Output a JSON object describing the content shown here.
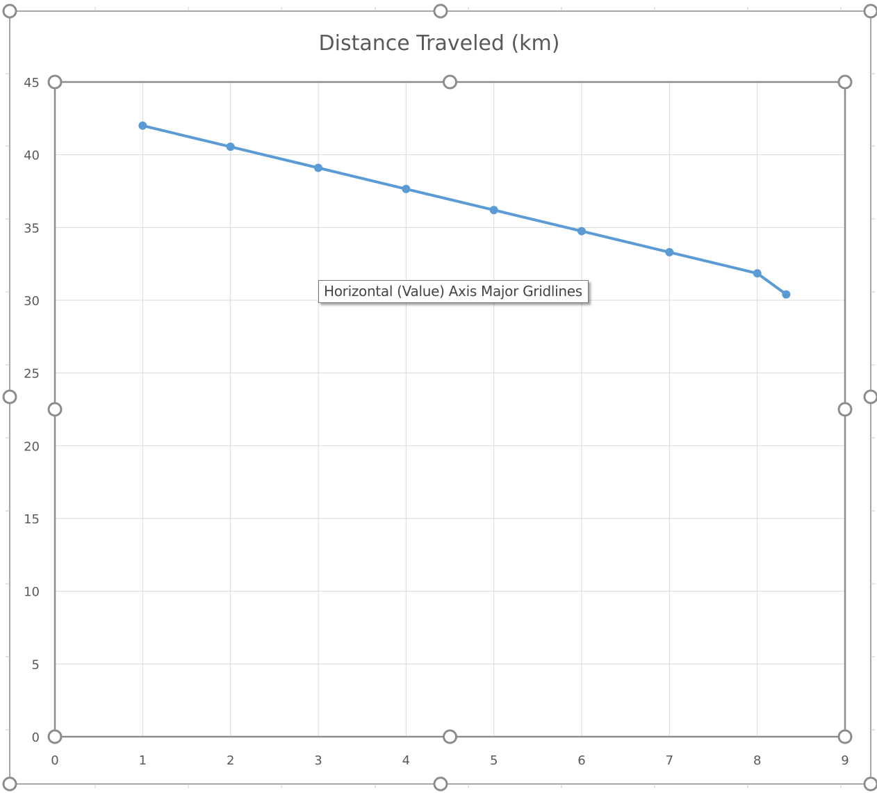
{
  "chart_data": {
    "type": "scatter",
    "title": "Distance Traveled  (km)",
    "xlabel": "",
    "ylabel": "",
    "xlim": [
      0,
      9
    ],
    "ylim": [
      0,
      45
    ],
    "x_ticks": [
      "0",
      "1",
      "2",
      "3",
      "4",
      "5",
      "6",
      "7",
      "8",
      "9"
    ],
    "y_ticks": [
      "0",
      "5",
      "10",
      "15",
      "20",
      "25",
      "30",
      "35",
      "40",
      "45"
    ],
    "grid": true,
    "legend": "none",
    "series": [
      {
        "color": "#5b9bd5",
        "marker": "circle",
        "line": "straight",
        "points": [
          {
            "x": 1,
            "y": 42.0
          },
          {
            "x": 2,
            "y": 40.55
          },
          {
            "x": 3,
            "y": 39.1
          },
          {
            "x": 4,
            "y": 37.65
          },
          {
            "x": 5,
            "y": 36.2
          },
          {
            "x": 6,
            "y": 34.75
          },
          {
            "x": 7,
            "y": 33.3
          },
          {
            "x": 8,
            "y": 31.85
          },
          {
            "x": 8.33,
            "y": 30.4
          }
        ]
      }
    ]
  },
  "tooltip": {
    "text": "Horizontal (Value) Axis Major Gridlines"
  },
  "colors": {
    "gridline": "#d9d9d9",
    "axis_line": "#bfbfbf",
    "handle": "#8c8c8c",
    "frame": "#a6a6a6",
    "tick_text": "#595959",
    "title_text": "#595959"
  }
}
